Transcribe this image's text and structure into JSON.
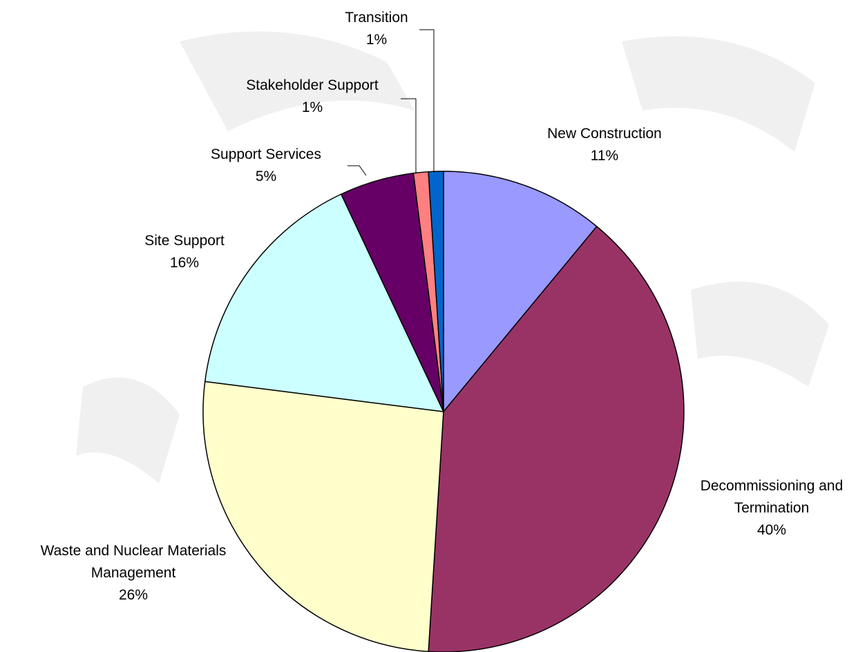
{
  "chart_data": {
    "type": "pie",
    "categories": [
      "New Construction",
      "Decommissioning and Termination",
      "Waste and Nuclear Materials Management",
      "Site Support",
      "Support Services",
      "Stakeholder Support",
      "Transition"
    ],
    "values": [
      11,
      40,
      26,
      16,
      5,
      1,
      1
    ],
    "value_labels": [
      "11%",
      "40%",
      "26%",
      "16%",
      "5%",
      "1%",
      "1%"
    ],
    "colors": [
      "#9999ff",
      "#993366",
      "#ffffcc",
      "#ccffff",
      "#660066",
      "#ff8080",
      "#0066cc"
    ]
  }
}
